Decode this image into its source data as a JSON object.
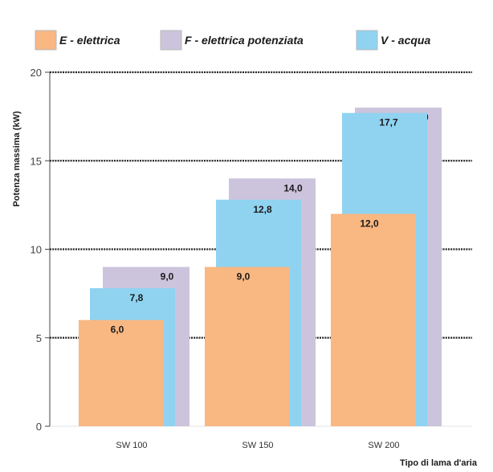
{
  "chart_data": {
    "type": "bar",
    "categories": [
      "SW 100",
      "SW 150",
      "SW 200"
    ],
    "series": [
      {
        "name": "E - elettrica",
        "values": [
          6.0,
          9.0,
          12.0
        ],
        "labels": [
          "6,0",
          "9,0",
          "12,0"
        ],
        "color": "#f9b782"
      },
      {
        "name": "F - elettrica potenziata",
        "values": [
          9.0,
          14.0,
          18.0
        ],
        "labels": [
          "9,0",
          "14,0",
          "18,0"
        ],
        "color": "#ccc4dc"
      },
      {
        "name": "V - acqua",
        "values": [
          7.8,
          12.8,
          17.7
        ],
        "labels": [
          "7,8",
          "12,8",
          "17,7"
        ],
        "color": "#8fd3f1"
      }
    ],
    "title": "",
    "xlabel": "Tipo di lama d'aria",
    "ylabel": "Potenza massima (kW)",
    "ylim": [
      0,
      20
    ],
    "yticks": [
      "0",
      "5",
      "10",
      "15",
      "20"
    ],
    "grid": true,
    "legend": "top"
  }
}
